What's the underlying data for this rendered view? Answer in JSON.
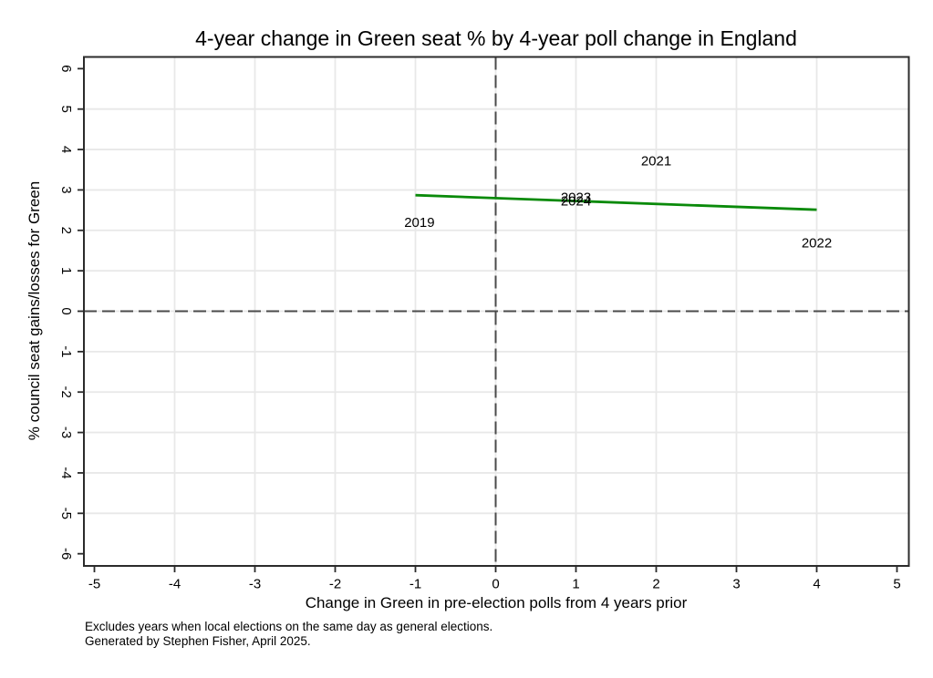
{
  "chart_data": {
    "type": "scatter",
    "title": "4-year change in Green seat % by 4-year poll change in England",
    "xlabel": "Change in Green in pre-election polls from 4 years prior",
    "ylabel": "% council seat gains/losses for Green",
    "xlim": [
      -5.15,
      5.15
    ],
    "ylim": [
      -6.3,
      6.3
    ],
    "x_ticks": [
      -5,
      -4,
      -3,
      -2,
      -1,
      0,
      1,
      2,
      3,
      4,
      5
    ],
    "y_ticks": [
      -6,
      -5,
      -4,
      -3,
      -2,
      -1,
      0,
      1,
      2,
      3,
      4,
      5,
      6
    ],
    "grid_x": [
      -4,
      -3,
      -2,
      -1,
      0,
      1,
      2,
      3,
      4
    ],
    "grid_y": [
      -5,
      -4,
      -3,
      -2,
      -1,
      0,
      1,
      2,
      3,
      4,
      5
    ],
    "zero_reference_lines": {
      "x": 0,
      "y": 0,
      "style": "dashed"
    },
    "points": [
      {
        "label": "2019",
        "x": -0.95,
        "y": 2.2
      },
      {
        "label": "2021",
        "x": 2.0,
        "y": 3.72
      },
      {
        "label": "2022",
        "x": 4.0,
        "y": 1.7
      },
      {
        "label": "2023",
        "x": 1.0,
        "y": 2.82
      },
      {
        "label": "2024",
        "x": 1.0,
        "y": 2.73
      }
    ],
    "trend_line": {
      "x1": -1.0,
      "y1": 2.87,
      "x2": 4.0,
      "y2": 2.51
    },
    "legend": "none",
    "grid": "on",
    "notes": [
      "Excludes years when local elections on the same day as general elections.",
      "Generated by Stephen Fisher, April 2025."
    ],
    "colors": {
      "trend_line": "#0a8a0a",
      "point_labels": "#1e691e",
      "grid": "#e8e8e8",
      "axis": "#2b2b2b",
      "zero_line": "#4a4a4a",
      "text": "#000000",
      "background": "#ffffff"
    }
  }
}
